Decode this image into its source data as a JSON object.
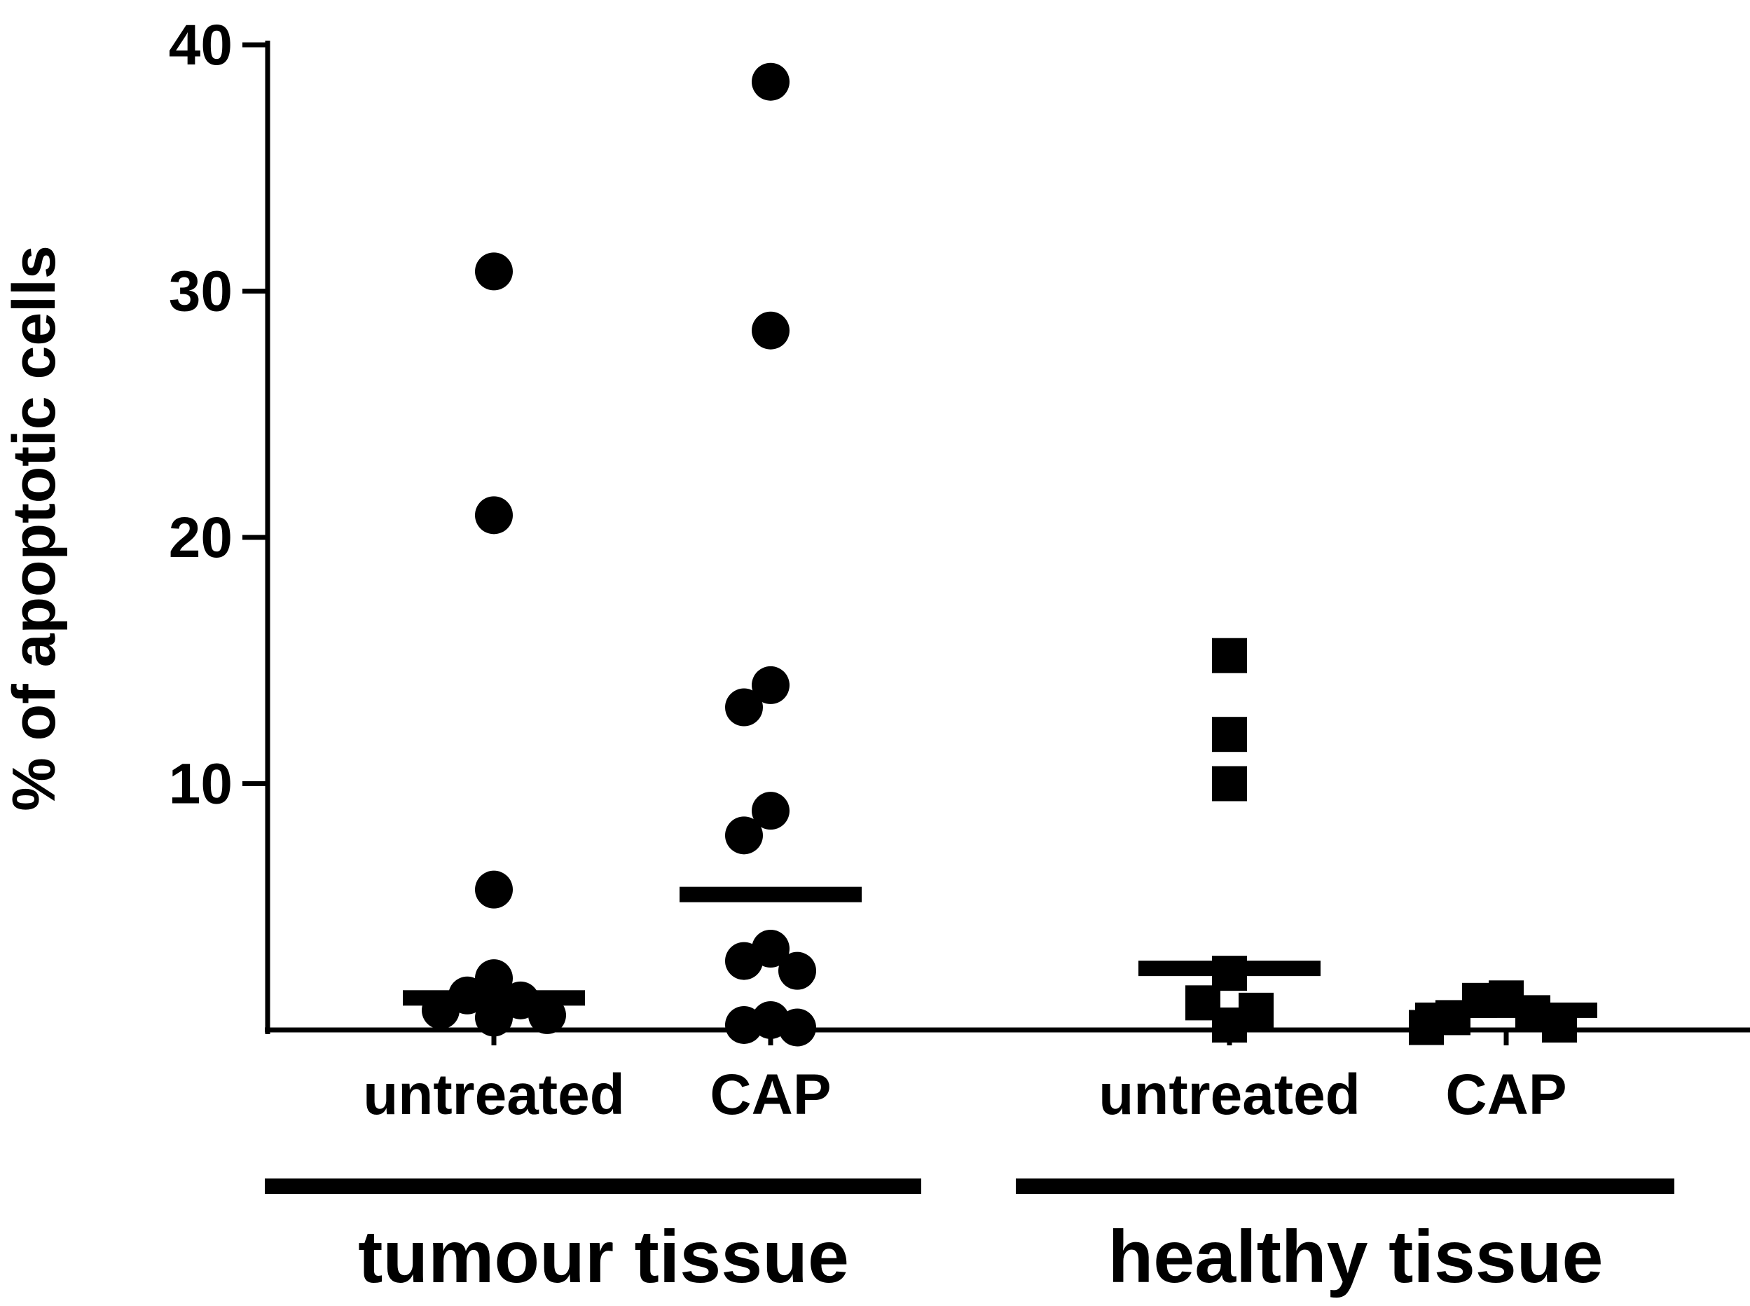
{
  "chart_data": {
    "type": "scatter",
    "ylabel": "% of apoptotic cells",
    "ylim": [
      0,
      40
    ],
    "yticks": [
      "10",
      "20",
      "30",
      "40"
    ],
    "ytick_values": [
      10,
      20,
      30,
      40
    ],
    "grid": false,
    "groups": [
      {
        "label": "tumour tissue",
        "categories": [
          0,
          1
        ]
      },
      {
        "label": "healthy tissue",
        "categories": [
          2,
          3
        ]
      }
    ],
    "series": [
      {
        "category": "untreated",
        "group": "tumour tissue",
        "marker": "circle",
        "mean": 1.3,
        "values": [
          30.8,
          20.9,
          5.7,
          2.1,
          1.4,
          1.2,
          0.8,
          0.6,
          0.5
        ]
      },
      {
        "category": "CAP",
        "group": "tumour tissue",
        "marker": "circle",
        "mean": 5.5,
        "values": [
          38.5,
          28.4,
          14.0,
          13.1,
          8.9,
          7.9,
          3.3,
          2.8,
          2.4,
          0.4,
          0.2,
          0.1
        ]
      },
      {
        "category": "untreated",
        "group": "healthy tissue",
        "marker": "square",
        "mean": 2.5,
        "values": [
          15.2,
          12.0,
          10.0,
          2.3,
          1.1,
          0.8,
          0.2
        ]
      },
      {
        "category": "CAP",
        "group": "healthy tissue",
        "marker": "square",
        "mean": 0.8,
        "values": [
          1.3,
          1.2,
          0.7,
          0.5,
          0.2,
          0.1
        ]
      }
    ],
    "colors": {
      "marks": "#000000",
      "background": "#ffffff"
    }
  }
}
